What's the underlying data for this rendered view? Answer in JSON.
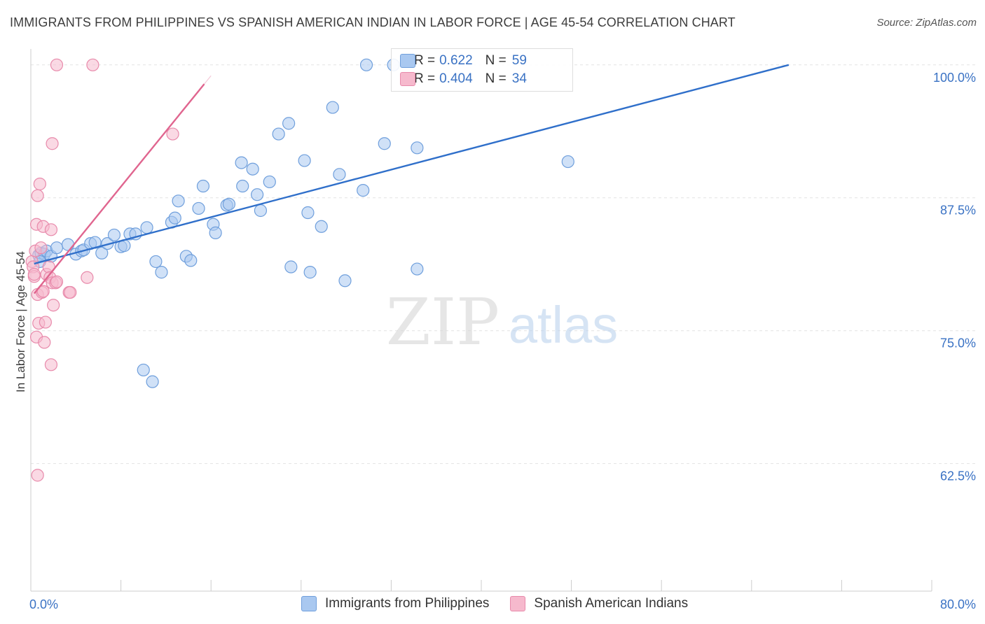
{
  "header": {
    "title": "IMMIGRANTS FROM PHILIPPINES VS SPANISH AMERICAN INDIAN IN LABOR FORCE | AGE 45-54 CORRELATION CHART",
    "source": "Source: ZipAtlas.com"
  },
  "watermark": {
    "zip": "ZIP",
    "atlas": "atlas"
  },
  "legend_top": {
    "rows": [
      {
        "r_label": "R =",
        "r_value": "0.622",
        "n_label": "N =",
        "n_value": "59"
      },
      {
        "r_label": "R =",
        "r_value": "0.404",
        "n_label": "N =",
        "n_value": "34"
      }
    ]
  },
  "legend_bottom": {
    "items": [
      {
        "label": "Immigrants from Philippines"
      },
      {
        "label": "Spanish American Indians"
      }
    ]
  },
  "colors": {
    "blue_fill": "#a9c8f0",
    "blue_stroke": "#6f9fdc",
    "blue_line": "#2f6fca",
    "pink_fill": "#f6b9cd",
    "pink_stroke": "#e88aab",
    "pink_line": "#e0658f",
    "tick_label": "#3a72c4",
    "grid": "#e3e3e3"
  },
  "chart_data": {
    "type": "scatter",
    "title": "IMMIGRANTS FROM PHILIPPINES VS SPANISH AMERICAN INDIAN IN LABOR FORCE | AGE 45-54 CORRELATION CHART",
    "xlabel": "",
    "ylabel": "In Labor Force | Age 45-54",
    "xlim": [
      0,
      80
    ],
    "ylim": [
      50.5,
      101.5
    ],
    "x_tick_labels": [
      "0.0%",
      "80.0%"
    ],
    "y_ticks": [
      62.5,
      75.0,
      87.5,
      100.0
    ],
    "y_tick_labels": [
      "62.5%",
      "75.0%",
      "87.5%",
      "100.0%"
    ],
    "grid": true,
    "series": [
      {
        "name": "Immigrants from Philippines",
        "color": "blue",
        "R": 0.622,
        "N": 59,
        "trend": {
          "x": [
            0.3,
            67.3
          ],
          "y": [
            81.3,
            100.0
          ]
        },
        "points": [
          [
            0.7,
            82.1
          ],
          [
            0.9,
            82.3
          ],
          [
            1.2,
            82.2
          ],
          [
            1.4,
            82.5
          ],
          [
            0.8,
            81.5
          ],
          [
            1.8,
            82.0
          ],
          [
            2.3,
            82.8
          ],
          [
            3.3,
            83.1
          ],
          [
            4.0,
            82.2
          ],
          [
            4.5,
            82.5
          ],
          [
            4.7,
            82.6
          ],
          [
            5.3,
            83.2
          ],
          [
            5.7,
            83.3
          ],
          [
            6.3,
            82.3
          ],
          [
            6.8,
            83.2
          ],
          [
            7.4,
            84.0
          ],
          [
            8.0,
            82.9
          ],
          [
            8.3,
            83.0
          ],
          [
            8.8,
            84.1
          ],
          [
            9.3,
            84.1
          ],
          [
            10.3,
            84.7
          ],
          [
            11.1,
            81.5
          ],
          [
            11.6,
            80.5
          ],
          [
            12.5,
            85.2
          ],
          [
            12.8,
            85.6
          ],
          [
            13.1,
            87.2
          ],
          [
            13.8,
            82.0
          ],
          [
            14.2,
            81.6
          ],
          [
            14.9,
            86.5
          ],
          [
            15.3,
            88.6
          ],
          [
            16.2,
            85.0
          ],
          [
            16.4,
            84.2
          ],
          [
            17.4,
            86.8
          ],
          [
            17.6,
            86.9
          ],
          [
            18.7,
            90.8
          ],
          [
            18.8,
            88.6
          ],
          [
            19.7,
            90.2
          ],
          [
            20.1,
            87.8
          ],
          [
            20.4,
            86.3
          ],
          [
            21.2,
            89.0
          ],
          [
            22.0,
            93.5
          ],
          [
            22.9,
            94.5
          ],
          [
            23.1,
            81.0
          ],
          [
            24.3,
            91.0
          ],
          [
            24.6,
            86.1
          ],
          [
            24.8,
            80.5
          ],
          [
            25.8,
            84.8
          ],
          [
            26.8,
            96.0
          ],
          [
            27.4,
            89.7
          ],
          [
            27.9,
            79.7
          ],
          [
            29.5,
            88.2
          ],
          [
            29.8,
            100.0
          ],
          [
            31.4,
            92.6
          ],
          [
            32.2,
            100.0
          ],
          [
            34.3,
            92.2
          ],
          [
            34.3,
            80.8
          ],
          [
            47.7,
            90.9
          ],
          [
            10.0,
            71.3
          ],
          [
            10.8,
            70.2
          ]
        ]
      },
      {
        "name": "Spanish American Indians",
        "color": "pink",
        "R": 0.404,
        "N": 34,
        "trend": {
          "x": [
            0.3,
            15.4
          ],
          "y": [
            78.5,
            98.2
          ]
        },
        "points": [
          [
            0.1,
            81.5
          ],
          [
            0.2,
            81.0
          ],
          [
            0.3,
            80.1
          ],
          [
            0.3,
            80.3
          ],
          [
            0.4,
            82.5
          ],
          [
            0.5,
            85.0
          ],
          [
            0.5,
            74.4
          ],
          [
            0.6,
            87.7
          ],
          [
            0.6,
            78.4
          ],
          [
            0.7,
            75.7
          ],
          [
            0.8,
            88.8
          ],
          [
            0.9,
            82.8
          ],
          [
            1.0,
            78.6
          ],
          [
            1.1,
            78.7
          ],
          [
            1.1,
            84.8
          ],
          [
            1.2,
            73.9
          ],
          [
            1.3,
            75.8
          ],
          [
            1.4,
            80.3
          ],
          [
            1.6,
            81.0
          ],
          [
            1.7,
            80.0
          ],
          [
            1.8,
            71.8
          ],
          [
            1.8,
            84.5
          ],
          [
            1.9,
            79.5
          ],
          [
            1.9,
            92.6
          ],
          [
            2.0,
            77.4
          ],
          [
            2.2,
            79.5
          ],
          [
            2.3,
            100.0
          ],
          [
            2.3,
            79.6
          ],
          [
            3.4,
            78.6
          ],
          [
            3.5,
            78.6
          ],
          [
            5.0,
            80.0
          ],
          [
            5.5,
            100.0
          ],
          [
            12.6,
            93.5
          ],
          [
            0.6,
            61.4
          ]
        ]
      }
    ]
  }
}
